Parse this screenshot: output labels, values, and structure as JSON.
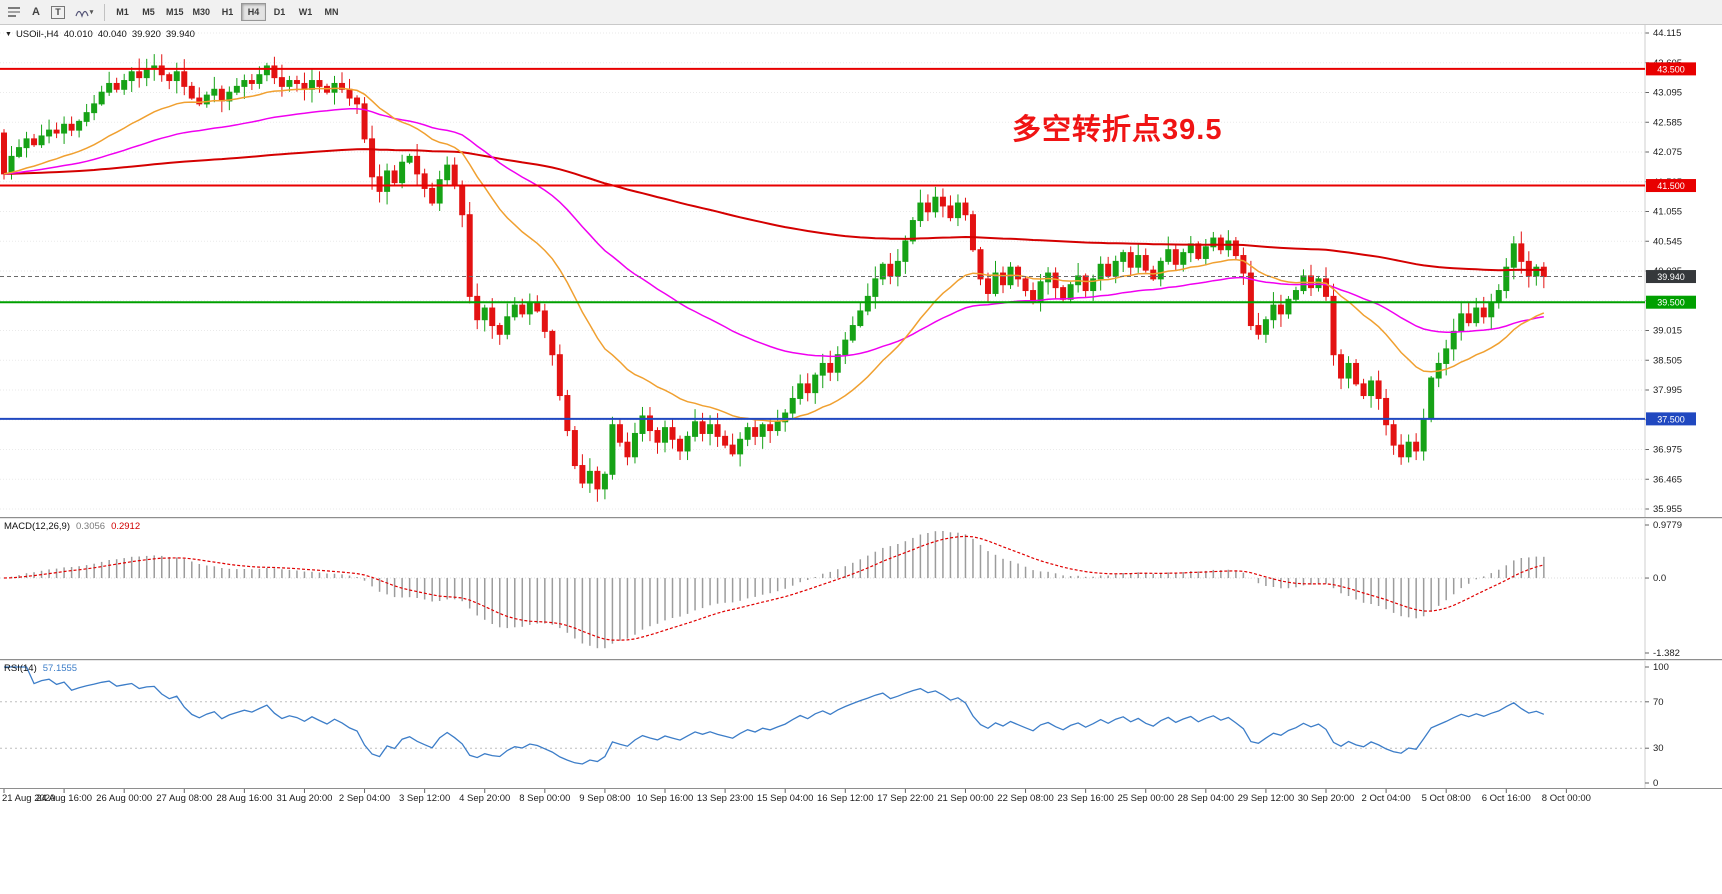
{
  "toolbar": {
    "icons": [
      {
        "name": "order-lines-icon"
      },
      {
        "name": "text-annotate-icon",
        "glyph": "A"
      },
      {
        "name": "text-label-icon",
        "glyph": "T"
      },
      {
        "name": "cycle-lines-icon",
        "glyph": "▾"
      }
    ],
    "timeframes": [
      {
        "label": "M1",
        "active": false
      },
      {
        "label": "M5",
        "active": false
      },
      {
        "label": "M15",
        "active": false
      },
      {
        "label": "M30",
        "active": false
      },
      {
        "label": "H1",
        "active": false
      },
      {
        "label": "H4",
        "active": true
      },
      {
        "label": "D1",
        "active": false
      },
      {
        "label": "W1",
        "active": false
      },
      {
        "label": "MN",
        "active": false
      }
    ]
  },
  "header": {
    "symbol": "USOil-,H4",
    "open": "40.010",
    "high": "40.040",
    "low": "39.920",
    "close": "39.940"
  },
  "annotation": {
    "text": "多空转折点39.5",
    "color": "#F01414"
  },
  "price_axis": [
    "44.115",
    "43.605",
    "43.095",
    "42.585",
    "42.075",
    "41.565",
    "41.055",
    "40.545",
    "40.035",
    "39.525",
    "39.015",
    "38.505",
    "37.995",
    "37.485",
    "36.975",
    "36.465",
    "35.955"
  ],
  "indicators": {
    "macd": {
      "name": "MACD(12,26,9)",
      "main_value": "0.3056",
      "signal_value": "0.2912",
      "axis_top": "0.9779",
      "axis_zero": "0.0",
      "axis_bottom": "-1.382",
      "axis_top_value": 0.9779,
      "axis_bottom_value": -1.382,
      "fast": 12,
      "slow": 26,
      "signal": 9,
      "histogram_color": "#9c9c9c",
      "signal_color": "#E00000"
    },
    "rsi": {
      "name": "RSI(14)",
      "value": "57.1555",
      "axis": [
        "100",
        "70",
        "30",
        "0"
      ],
      "levels": [
        70,
        30
      ],
      "period": 14,
      "line_color": "#3C7DC8"
    }
  },
  "chart_data": {
    "type": "candlestick",
    "symbol": "USOil-",
    "timeframe": "H4",
    "y_min": 35.955,
    "y_max": 44.115,
    "up_color": "#16A216",
    "down_color": "#E31212",
    "first_open": 42.4,
    "closes": [
      41.7,
      42.0,
      42.15,
      42.3,
      42.2,
      42.35,
      42.45,
      42.4,
      42.55,
      42.45,
      42.6,
      42.75,
      42.9,
      43.1,
      43.25,
      43.15,
      43.3,
      43.45,
      43.35,
      43.5,
      43.55,
      43.4,
      43.3,
      43.45,
      43.2,
      43.0,
      42.9,
      43.05,
      43.15,
      42.95,
      43.1,
      43.2,
      43.3,
      43.25,
      43.4,
      43.55,
      43.35,
      43.2,
      43.3,
      43.25,
      43.15,
      43.3,
      43.2,
      43.1,
      43.25,
      43.15,
      43.0,
      42.9,
      42.3,
      41.65,
      41.4,
      41.75,
      41.55,
      41.9,
      42.0,
      41.7,
      41.45,
      41.2,
      41.6,
      41.85,
      41.5,
      41.0,
      39.6,
      39.2,
      39.4,
      39.1,
      38.95,
      39.25,
      39.45,
      39.3,
      39.5,
      39.35,
      39.0,
      38.6,
      37.9,
      37.3,
      36.7,
      36.4,
      36.6,
      36.3,
      36.55,
      37.4,
      37.1,
      36.85,
      37.25,
      37.55,
      37.3,
      37.1,
      37.35,
      37.15,
      36.95,
      37.2,
      37.45,
      37.25,
      37.4,
      37.2,
      37.05,
      36.9,
      37.15,
      37.35,
      37.2,
      37.4,
      37.3,
      37.45,
      37.6,
      37.85,
      38.1,
      37.95,
      38.25,
      38.45,
      38.3,
      38.6,
      38.85,
      39.1,
      39.35,
      39.6,
      39.9,
      40.15,
      39.95,
      40.2,
      40.55,
      40.9,
      41.2,
      41.05,
      41.3,
      41.15,
      40.95,
      41.2,
      41.0,
      40.4,
      39.9,
      39.65,
      40.0,
      39.8,
      40.1,
      39.9,
      39.7,
      39.5,
      39.85,
      40.0,
      39.75,
      39.55,
      39.8,
      39.95,
      39.7,
      39.9,
      40.15,
      39.95,
      40.2,
      40.35,
      40.1,
      40.3,
      40.05,
      39.9,
      40.2,
      40.4,
      40.15,
      40.35,
      40.5,
      40.25,
      40.45,
      40.6,
      40.4,
      40.55,
      40.3,
      40.0,
      39.1,
      38.95,
      39.2,
      39.45,
      39.3,
      39.55,
      39.7,
      39.95,
      39.75,
      39.9,
      39.6,
      38.6,
      38.2,
      38.45,
      38.1,
      37.9,
      38.15,
      37.85,
      37.4,
      37.05,
      36.85,
      37.1,
      36.95,
      37.5,
      38.2,
      38.45,
      38.7,
      39.0,
      39.3,
      39.15,
      39.4,
      39.25,
      39.5,
      39.7,
      40.1,
      40.5,
      40.2,
      39.95,
      40.1,
      39.94
    ],
    "ma_lines": [
      {
        "name": "ma-line-slow",
        "period": 250,
        "color": "#D40000",
        "width": 2
      },
      {
        "name": "ma-line-mid",
        "period": 60,
        "color": "#F000F0",
        "width": 1.5
      },
      {
        "name": "ma-line-fast",
        "period": 24,
        "color": "#F0A030",
        "width": 1.5
      }
    ],
    "hlines": [
      {
        "value": 43.5,
        "label": "43.500",
        "color": "#E80000",
        "width": 2
      },
      {
        "value": 41.5,
        "label": "41.500",
        "color": "#E80000",
        "width": 2
      },
      {
        "value": 39.5,
        "label": "39.500",
        "color": "#00A000",
        "width": 2
      },
      {
        "value": 37.5,
        "label": "37.500",
        "color": "#2048C0",
        "width": 2
      }
    ],
    "current_price": {
      "value": 39.94,
      "label": "39.940",
      "bg": "#35383B"
    },
    "x_labels": [
      "21 Aug 2020",
      "24 Aug 16:00",
      "26 Aug 00:00",
      "27 Aug 08:00",
      "28 Aug 16:00",
      "31 Aug 20:00",
      "2 Sep 04:00",
      "3 Sep 12:00",
      "4 Sep 20:00",
      "8 Sep 00:00",
      "9 Sep 08:00",
      "10 Sep 16:00",
      "13 Sep 23:00",
      "15 Sep 04:00",
      "16 Sep 12:00",
      "17 Sep 22:00",
      "21 Sep 00:00",
      "22 Sep 08:00",
      "23 Sep 16:00",
      "25 Sep 00:00",
      "28 Sep 04:00",
      "29 Sep 12:00",
      "30 Sep 20:00",
      "2 Oct 04:00",
      "5 Oct 08:00",
      "6 Oct 16:00",
      "8 Oct 00:00"
    ]
  }
}
